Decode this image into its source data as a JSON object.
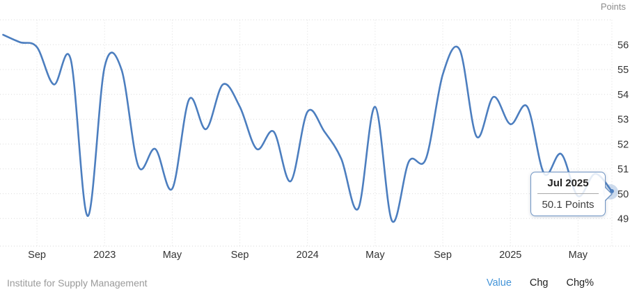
{
  "header": {
    "y_axis_title": "Points"
  },
  "tooltip": {
    "date": "Jul 2025",
    "value_text": "50.1 Points"
  },
  "footer": {
    "source": "Institute for Supply Management",
    "tabs": [
      {
        "label": "Value",
        "active": true
      },
      {
        "label": "Chg",
        "active": false
      },
      {
        "label": "Chg%",
        "active": false
      }
    ]
  },
  "colors": {
    "line": "#4c7ebf",
    "halo": "rgba(76,126,191,0.28)",
    "grid": "#dcdcdc",
    "axisline": "#d6d6d6",
    "axis_text": "#333333",
    "muted_text": "#8c8c8c",
    "source_text": "#9a9a9a",
    "active_tab": "#4394d8",
    "tab_text": "#1f1f1f",
    "tooltip_border": "#6f94c3"
  },
  "chart_data": {
    "type": "line",
    "title": "",
    "ylabel": "Points",
    "legend": "none",
    "grid": "dotted",
    "ylim": [
      48.6,
      57.0
    ],
    "y_ticks": [
      49,
      50,
      51,
      52,
      53,
      54,
      55,
      56
    ],
    "x_tick_labels": [
      "Sep",
      "2023",
      "May",
      "Sep",
      "2024",
      "May",
      "Sep",
      "2025",
      "May"
    ],
    "x_tick_positions": [
      2,
      6,
      10,
      14,
      18,
      22,
      26,
      30,
      34
    ],
    "x": [
      "Jul 2022",
      "Aug 2022",
      "Sep 2022",
      "Oct 2022",
      "Nov 2022",
      "Dec 2022",
      "Jan 2023",
      "Feb 2023",
      "Mar 2023",
      "Apr 2023",
      "May 2023",
      "Jun 2023",
      "Jul 2023",
      "Aug 2023",
      "Sep 2023",
      "Oct 2023",
      "Nov 2023",
      "Dec 2023",
      "Jan 2024",
      "Feb 2024",
      "Mar 2024",
      "Apr 2024",
      "May 2024",
      "Jun 2024",
      "Jul 2024",
      "Aug 2024",
      "Sep 2024",
      "Oct 2024",
      "Nov 2024",
      "Dec 2024",
      "Jan 2025",
      "Feb 2025",
      "Mar 2025",
      "Apr 2025",
      "May 2025",
      "Jun 2025",
      "Jul 2025"
    ],
    "values": [
      56.4,
      56.1,
      55.9,
      54.4,
      55.4,
      49.1,
      55.1,
      55.0,
      51.1,
      51.8,
      50.2,
      53.8,
      52.6,
      54.4,
      53.5,
      51.8,
      52.5,
      50.5,
      53.3,
      52.5,
      51.4,
      49.4,
      53.5,
      48.9,
      51.3,
      51.4,
      54.8,
      55.8,
      52.3,
      53.9,
      52.8,
      53.5,
      50.8,
      51.6,
      49.9,
      50.8,
      50.1
    ],
    "last_point": {
      "x": "Jul 2025",
      "value": 50.1,
      "marker": "halo-circle"
    }
  }
}
